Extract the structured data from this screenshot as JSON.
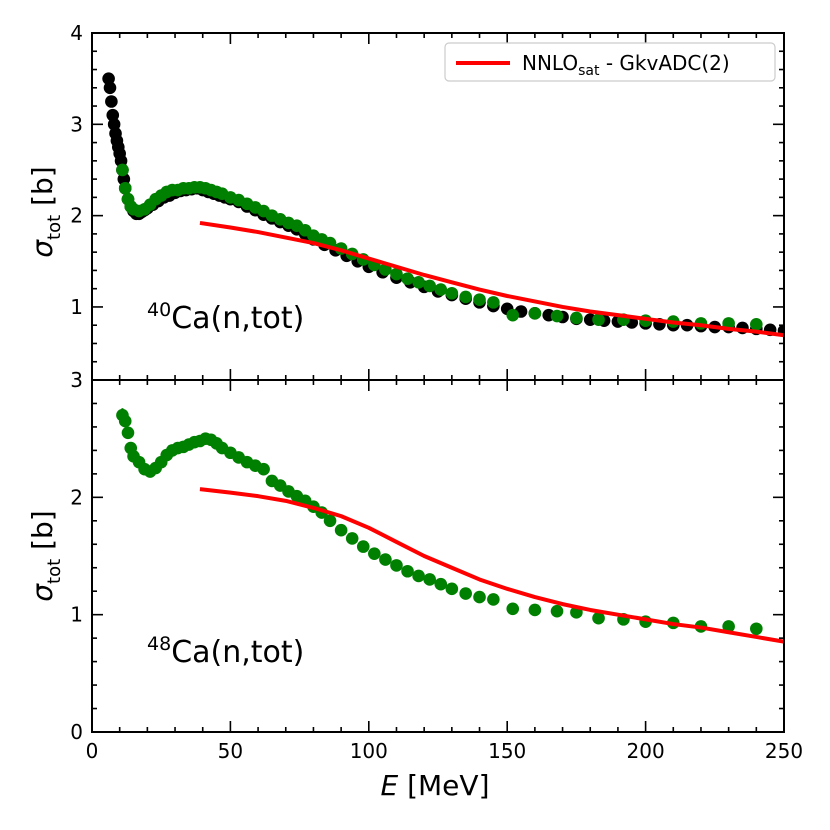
{
  "chart_data": {
    "type": "scatter",
    "xlabel": "E [MeV]",
    "xlabel_italic": "E",
    "xlabel_rest": " [MeV]",
    "x_ticks": [
      "0",
      "50",
      "100",
      "150",
      "200",
      "250"
    ],
    "xlim": [
      0,
      250
    ],
    "legend": {
      "label_main": "NNLO",
      "label_sub": "sat",
      "label_rest": " - GkvADC(2)",
      "color": "#ff0000",
      "placement": "top-right"
    },
    "colors": {
      "black_data": "#000000",
      "green_data": "#008000",
      "theory": "#ff0000"
    },
    "panels": [
      {
        "id": "ca40",
        "annotation_sup": "40",
        "annotation_main": "Ca(n,tot)",
        "ylabel_sym": "σ",
        "ylabel_sub": "tot",
        "ylabel_unit": " [b]",
        "ylim": [
          0.2,
          4
        ],
        "y_ticks": [
          "1",
          "2",
          "3",
          "4"
        ],
        "series": [
          {
            "name": "black data",
            "kind": "scatter",
            "color": "#000000",
            "x": [
              6,
              6.5,
              7,
              7.5,
              8,
              8.5,
              9,
              9.5,
              10,
              10.5,
              11,
              11.5,
              12,
              13,
              14,
              15,
              16,
              17,
              18,
              19,
              20,
              22,
              24,
              26,
              28,
              30,
              32,
              34,
              36,
              38,
              40,
              42,
              44,
              46,
              48,
              50,
              53,
              56,
              59,
              62,
              65,
              68,
              71,
              74,
              77,
              80,
              84,
              88,
              92,
              96,
              100,
              105,
              110,
              115,
              120,
              125,
              130,
              135,
              140,
              145,
              150,
              155,
              160,
              165,
              170,
              175,
              180,
              185,
              190,
              195,
              200,
              205,
              210,
              215,
              220,
              225,
              230,
              235,
              240,
              245,
              250
            ],
            "y": [
              3.5,
              3.4,
              3.25,
              3.1,
              3.0,
              2.9,
              2.82,
              2.75,
              2.68,
              2.6,
              2.5,
              2.4,
              2.3,
              2.18,
              2.1,
              2.05,
              2.02,
              2.02,
              2.04,
              2.06,
              2.08,
              2.12,
              2.16,
              2.2,
              2.22,
              2.25,
              2.27,
              2.28,
              2.29,
              2.3,
              2.28,
              2.26,
              2.24,
              2.22,
              2.2,
              2.18,
              2.15,
              2.1,
              2.06,
              2.01,
              1.97,
              1.93,
              1.89,
              1.85,
              1.8,
              1.74,
              1.68,
              1.62,
              1.56,
              1.5,
              1.44,
              1.38,
              1.32,
              1.27,
              1.22,
              1.17,
              1.13,
              1.09,
              1.05,
              1.01,
              0.98,
              0.95,
              0.93,
              0.91,
              0.89,
              0.87,
              0.86,
              0.85,
              0.84,
              0.83,
              0.82,
              0.81,
              0.8,
              0.8,
              0.79,
              0.78,
              0.78,
              0.77,
              0.76,
              0.75,
              0.74
            ]
          },
          {
            "name": "green data",
            "kind": "scatter",
            "color": "#008000",
            "x": [
              11,
              12,
              13,
              14,
              15,
              17,
              19,
              21,
              23,
              25,
              27,
              29,
              31,
              33,
              35,
              37,
              39,
              41,
              43,
              45,
              47,
              50,
              53,
              56,
              59,
              62,
              65,
              68,
              71,
              74,
              77,
              80,
              83,
              86,
              90,
              94,
              98,
              102,
              106,
              110,
              114,
              118,
              122,
              126,
              130,
              135,
              140,
              145,
              152,
              160,
              168,
              175,
              183,
              192,
              200,
              210,
              220,
              230,
              240
            ],
            "y": [
              2.5,
              2.3,
              2.18,
              2.1,
              2.07,
              2.05,
              2.07,
              2.12,
              2.18,
              2.22,
              2.26,
              2.28,
              2.28,
              2.3,
              2.3,
              2.31,
              2.31,
              2.3,
              2.28,
              2.26,
              2.24,
              2.2,
              2.17,
              2.13,
              2.09,
              2.05,
              2.0,
              1.96,
              1.92,
              1.89,
              1.84,
              1.78,
              1.74,
              1.7,
              1.64,
              1.58,
              1.52,
              1.46,
              1.41,
              1.36,
              1.31,
              1.27,
              1.23,
              1.19,
              1.15,
              1.11,
              1.08,
              1.05,
              0.91,
              0.93,
              0.9,
              0.88,
              0.86,
              0.86,
              0.85,
              0.84,
              0.82,
              0.82,
              0.81
            ]
          },
          {
            "name": "NNLOsat - GkvADC(2)",
            "kind": "line",
            "color": "#ff0000",
            "x": [
              39,
              50,
              60,
              70,
              80,
              90,
              100,
              110,
              120,
              130,
              140,
              150,
              160,
              170,
              180,
              190,
              200,
              210,
              220,
              230,
              240,
              250
            ],
            "y": [
              1.92,
              1.87,
              1.82,
              1.76,
              1.7,
              1.62,
              1.53,
              1.44,
              1.35,
              1.27,
              1.19,
              1.12,
              1.06,
              1.0,
              0.95,
              0.91,
              0.87,
              0.83,
              0.8,
              0.76,
              0.73,
              0.69
            ]
          }
        ]
      },
      {
        "id": "ca48",
        "annotation_sup": "48",
        "annotation_main": "Ca(n,tot)",
        "ylabel_sym": "σ",
        "ylabel_sub": "tot",
        "ylabel_unit": " [b]",
        "ylim": [
          0,
          3
        ],
        "y_ticks": [
          "0",
          "1",
          "2",
          "3"
        ],
        "series": [
          {
            "name": "green data",
            "kind": "scatter",
            "color": "#008000",
            "x": [
              11,
              12,
              13,
              14,
              15,
              17,
              19,
              21,
              23,
              25,
              27,
              29,
              31,
              33,
              35,
              37,
              39,
              41,
              43,
              45,
              47,
              50,
              53,
              56,
              59,
              62,
              65,
              68,
              71,
              74,
              77,
              80,
              83,
              86,
              90,
              94,
              98,
              102,
              106,
              110,
              114,
              118,
              122,
              126,
              130,
              135,
              140,
              145,
              152,
              160,
              168,
              175,
              183,
              192,
              200,
              210,
              220,
              230,
              240
            ],
            "y": [
              2.7,
              2.65,
              2.55,
              2.42,
              2.35,
              2.3,
              2.24,
              2.22,
              2.25,
              2.3,
              2.36,
              2.4,
              2.42,
              2.43,
              2.45,
              2.47,
              2.48,
              2.5,
              2.49,
              2.46,
              2.42,
              2.38,
              2.34,
              2.3,
              2.27,
              2.24,
              2.14,
              2.1,
              2.05,
              2.01,
              1.97,
              1.92,
              1.87,
              1.8,
              1.72,
              1.65,
              1.58,
              1.52,
              1.47,
              1.42,
              1.37,
              1.33,
              1.3,
              1.26,
              1.22,
              1.18,
              1.15,
              1.13,
              1.05,
              1.04,
              1.03,
              1.02,
              0.97,
              0.96,
              0.94,
              0.93,
              0.9,
              0.9,
              0.88
            ]
          },
          {
            "name": "NNLOsat - GkvADC(2)",
            "kind": "line",
            "color": "#ff0000",
            "x": [
              39,
              50,
              60,
              70,
              80,
              90,
              100,
              110,
              120,
              130,
              140,
              150,
              160,
              170,
              180,
              190,
              200,
              210,
              220,
              230,
              240,
              250
            ],
            "y": [
              2.07,
              2.04,
              2.01,
              1.97,
              1.91,
              1.84,
              1.74,
              1.62,
              1.5,
              1.4,
              1.3,
              1.22,
              1.15,
              1.09,
              1.04,
              1.0,
              0.96,
              0.92,
              0.89,
              0.85,
              0.81,
              0.77
            ]
          }
        ]
      }
    ]
  }
}
